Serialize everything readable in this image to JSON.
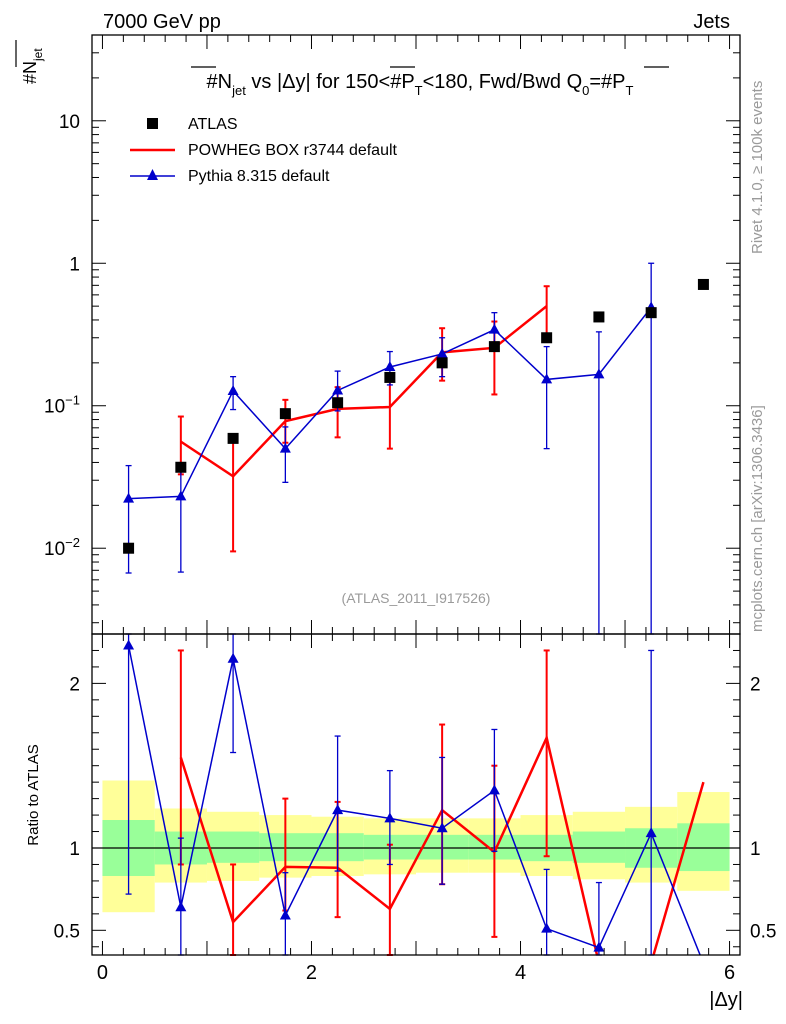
{
  "header": {
    "energy": "7000 GeV pp",
    "category": "Jets"
  },
  "side": {
    "rivet": "Rivet 4.1.0, ≥ 100k events",
    "mcplots": "mcplots.cern.ch [arXiv:1306.3436]"
  },
  "colors": {
    "data": "#000000",
    "powheg": "#ff0000",
    "pythia": "#0000cc",
    "band_inner": "#99ff99",
    "band_outer": "#ffff99"
  },
  "chart_data": [
    {
      "type": "line",
      "title": "#N_jet vs |Δy| for 150<#P_T<180, Fwd/Bwd Q_0=#P_T",
      "title_parts": {
        "a": "#N",
        "a_sub": "jet",
        "b": " vs |Δy| for 150<#P",
        "b_sub": "T",
        "c": "<180, Fwd/Bwd Q",
        "c_sub": "0",
        "d": "=#P",
        "d_sub": "T"
      },
      "ylabel": "#N_jet",
      "ylabel_parts": {
        "main": "#N",
        "sub": "jet"
      },
      "yscale": "log",
      "ylim": [
        0.0025,
        40
      ],
      "xlim": [
        -0.1,
        6.1
      ],
      "yticks": [
        {
          "value": 0.01,
          "base": "10",
          "exp": "−2"
        },
        {
          "value": 0.1,
          "base": "10",
          "exp": "−1"
        },
        {
          "value": 1,
          "label": "1"
        },
        {
          "value": 10,
          "label": "10"
        }
      ],
      "watermark": "(ATLAS_2011_I917526)",
      "legend": [
        {
          "key": "atlas",
          "label": "ATLAS"
        },
        {
          "key": "powheg",
          "label": "POWHEG BOX r3744 default"
        },
        {
          "key": "pythia",
          "label": "Pythia 8.315 default"
        }
      ],
      "series": [
        {
          "name": "ATLAS",
          "kind": "markers",
          "x": [
            0.25,
            0.75,
            1.25,
            1.75,
            2.25,
            2.75,
            3.25,
            3.75,
            4.25,
            4.75,
            5.25,
            5.75
          ],
          "y": [
            0.01,
            0.037,
            0.059,
            0.088,
            0.105,
            0.158,
            0.2,
            0.26,
            0.3,
            0.42,
            0.45,
            0.71
          ]
        },
        {
          "name": "POWHEG BOX r3744 default",
          "kind": "line",
          "x": [
            0.75,
            1.25,
            1.75,
            2.25,
            2.75,
            3.25,
            3.75,
            4.25
          ],
          "y": [
            0.056,
            0.032,
            0.078,
            0.095,
            0.098,
            0.237,
            0.255,
            0.5
          ],
          "err_lo": [
            0.033,
            0.0095,
            0.055,
            0.06,
            0.05,
            0.15,
            0.12,
            0.28
          ],
          "err_hi": [
            0.084,
            0.059,
            0.11,
            0.135,
            0.16,
            0.35,
            0.39,
            0.69
          ]
        },
        {
          "name": "Pythia 8.315 default",
          "kind": "line-markers",
          "x": [
            0.25,
            0.75,
            1.25,
            1.75,
            2.25,
            2.75,
            3.25,
            3.75,
            4.25,
            4.75,
            5.25
          ],
          "y": [
            0.0223,
            0.0231,
            0.127,
            0.05,
            0.128,
            0.187,
            0.231,
            0.342,
            0.153,
            0.166,
            0.49
          ],
          "err_lo": [
            0.0067,
            0.0068,
            0.094,
            0.029,
            0.092,
            0.14,
            0.16,
            0.25,
            0.05,
            0.001,
            0.001
          ],
          "err_hi": [
            0.038,
            0.039,
            0.16,
            0.071,
            0.175,
            0.24,
            0.3,
            0.45,
            0.26,
            0.33,
            1.0
          ]
        }
      ]
    },
    {
      "type": "line",
      "ylabel": "Ratio to ATLAS",
      "xlabel": "|Δy|",
      "ylim": [
        0.35,
        2.3
      ],
      "xlim": [
        -0.1,
        6.1
      ],
      "yticks": [
        {
          "value": 0.5,
          "label": "0.5"
        },
        {
          "value": 1,
          "label": "1"
        },
        {
          "value": 2,
          "label": "2"
        }
      ],
      "xticks": [
        {
          "value": 0,
          "label": "0"
        },
        {
          "value": 2,
          "label": "2"
        },
        {
          "value": 4,
          "label": "4"
        },
        {
          "value": 6,
          "label": "6"
        }
      ],
      "bands": {
        "x_lo": [
          0,
          0.5,
          1,
          1.5,
          2,
          2.5,
          3,
          3.5,
          4,
          4.5,
          5,
          5.5
        ],
        "x_hi": [
          0.5,
          1,
          1.5,
          2,
          2.5,
          3,
          3.5,
          4,
          4.5,
          5,
          5.5,
          6
        ],
        "outer_lo": [
          0.61,
          0.79,
          0.8,
          0.82,
          0.83,
          0.84,
          0.85,
          0.85,
          0.83,
          0.81,
          0.79,
          0.74
        ],
        "outer_hi": [
          1.41,
          1.24,
          1.22,
          1.2,
          1.19,
          1.18,
          1.18,
          1.18,
          1.2,
          1.22,
          1.25,
          1.34
        ],
        "inner_lo": [
          0.83,
          0.9,
          0.91,
          0.92,
          0.92,
          0.93,
          0.93,
          0.93,
          0.92,
          0.91,
          0.88,
          0.86
        ],
        "inner_hi": [
          1.17,
          1.1,
          1.1,
          1.09,
          1.09,
          1.08,
          1.08,
          1.08,
          1.08,
          1.1,
          1.12,
          1.15
        ]
      },
      "series": [
        {
          "name": "POWHEG BOX r3744 default",
          "x": [
            0.75,
            1.25,
            1.75,
            2.25,
            2.75,
            3.25,
            3.75,
            4.25,
            4.75,
            5.25,
            5.75
          ],
          "y": [
            1.55,
            0.55,
            0.885,
            0.88,
            0.63,
            1.23,
            0.975,
            1.67,
            0.3,
            0.3,
            1.4
          ],
          "err_lo": [
            0.9,
            0.16,
            0.62,
            0.58,
            0.32,
            0.78,
            0.46,
            0.95,
            null,
            null,
            null
          ],
          "err_hi": [
            2.2,
            0.9,
            1.3,
            1.28,
            1.02,
            1.75,
            1.5,
            2.2,
            null,
            null,
            null
          ]
        },
        {
          "name": "Pythia 8.315 default",
          "x": [
            0.25,
            0.75,
            1.25,
            1.75,
            2.25,
            2.75,
            3.25,
            3.75,
            4.25,
            4.75,
            5.25,
            5.75
          ],
          "y": [
            2.23,
            0.64,
            2.15,
            0.59,
            1.23,
            1.18,
            1.12,
            1.35,
            0.51,
            0.395,
            1.09,
            0.3
          ],
          "err_lo": [
            0.72,
            0.1,
            1.58,
            0.33,
            0.86,
            0.9,
            0.78,
            0.98,
            0.16,
            0.001,
            0.001,
            null
          ],
          "err_hi": [
            3.8,
            1.06,
            2.7,
            0.85,
            1.68,
            1.47,
            1.55,
            1.72,
            0.87,
            0.79,
            2.2,
            null
          ]
        }
      ]
    }
  ]
}
